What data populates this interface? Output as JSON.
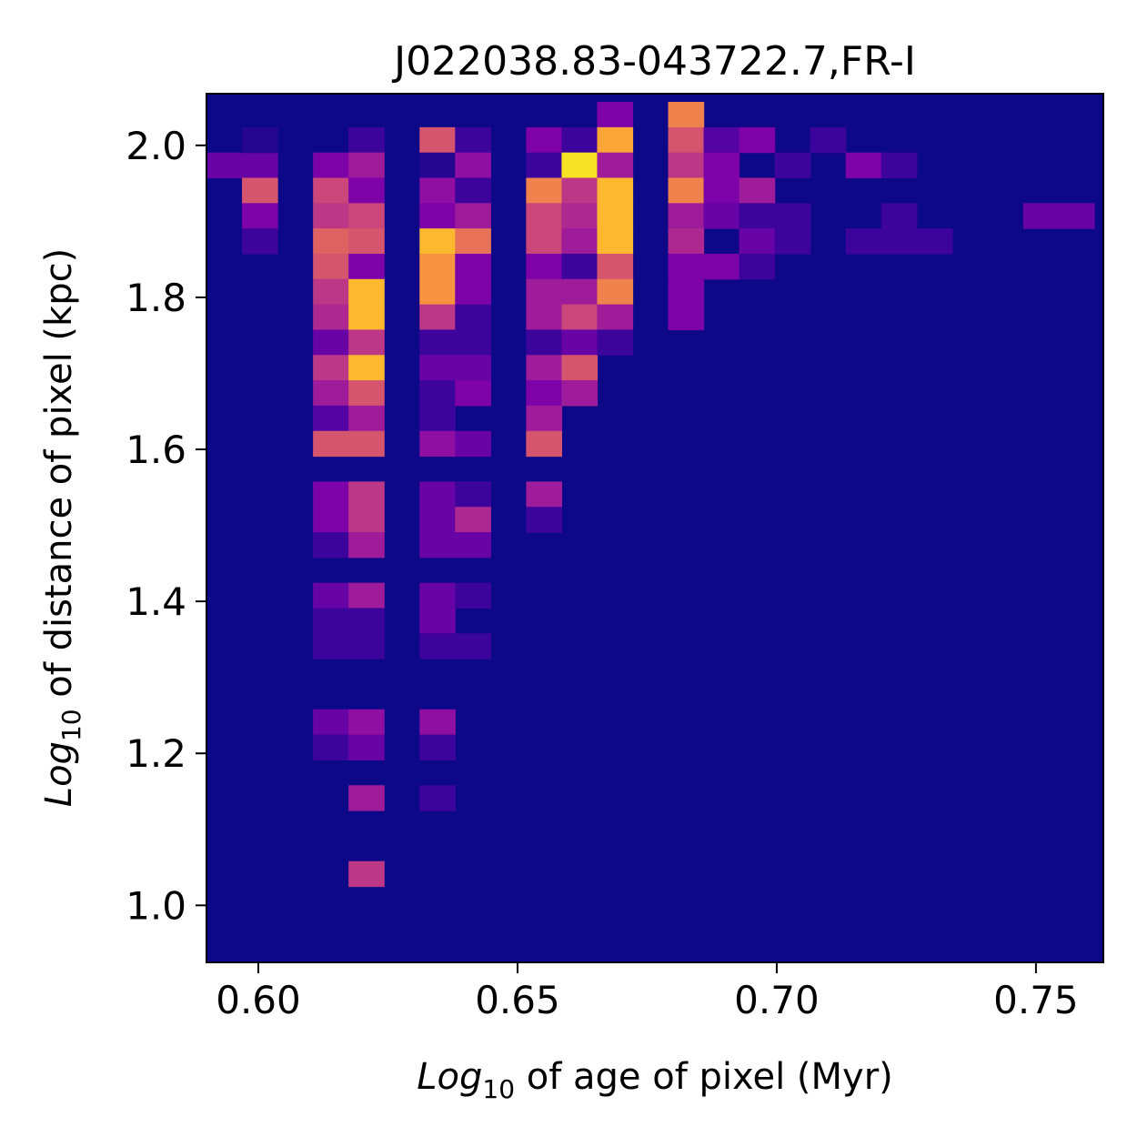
{
  "chart_data": {
    "type": "heatmap",
    "title": "J022038.83-043722.7,FR-I",
    "xlabel": {
      "log": "Log",
      "sub": "10",
      "rest": " of age of pixel (Myr)"
    },
    "ylabel": {
      "log": "Log",
      "sub": "10",
      "rest": " of distance of pixel (kpc)"
    },
    "xlim": [
      0.59,
      0.763
    ],
    "ylim": [
      0.925,
      2.068
    ],
    "xticks": [
      0.6,
      0.65,
      0.7,
      0.75
    ],
    "xtick_labels": [
      "0.60",
      "0.65",
      "0.70",
      "0.75"
    ],
    "yticks": [
      1.0,
      1.2,
      1.4,
      1.6,
      1.8,
      2.0
    ],
    "ytick_labels": [
      "1.0",
      "1.2",
      "1.4",
      "1.6",
      "1.8",
      "2.0"
    ],
    "colormap": "plasma",
    "background_color": "#0d0887",
    "bins": {
      "x0": 0.59,
      "dx": 0.00685,
      "nx": 25,
      "y0": 0.925,
      "dy": 0.0333,
      "ny": 34
    },
    "value_scale": "normalized 0-1 (count relative to maximum)",
    "cells": [
      [
        0,
        31,
        0.2
      ],
      [
        1,
        31,
        0.2
      ],
      [
        1,
        32,
        0.05
      ],
      [
        1,
        30,
        0.55
      ],
      [
        1,
        29,
        0.25
      ],
      [
        1,
        28,
        0.1
      ],
      [
        3,
        31,
        0.25
      ],
      [
        3,
        30,
        0.5
      ],
      [
        3,
        29,
        0.45
      ],
      [
        3,
        28,
        0.6
      ],
      [
        3,
        27,
        0.55
      ],
      [
        3,
        26,
        0.45
      ],
      [
        3,
        25,
        0.4
      ],
      [
        3,
        24,
        0.2
      ],
      [
        3,
        23,
        0.45
      ],
      [
        3,
        22,
        0.35
      ],
      [
        3,
        21,
        0.15
      ],
      [
        3,
        20,
        0.55
      ],
      [
        3,
        18,
        0.25
      ],
      [
        3,
        17,
        0.25
      ],
      [
        3,
        16,
        0.1
      ],
      [
        3,
        14,
        0.2
      ],
      [
        3,
        13,
        0.1
      ],
      [
        3,
        12,
        0.1
      ],
      [
        3,
        9,
        0.2
      ],
      [
        3,
        8,
        0.1
      ],
      [
        4,
        32,
        0.1
      ],
      [
        4,
        31,
        0.35
      ],
      [
        4,
        30,
        0.25
      ],
      [
        4,
        29,
        0.5
      ],
      [
        4,
        28,
        0.55
      ],
      [
        4,
        27,
        0.25
      ],
      [
        4,
        26,
        0.85
      ],
      [
        4,
        25,
        0.85
      ],
      [
        4,
        24,
        0.45
      ],
      [
        4,
        23,
        0.85
      ],
      [
        4,
        22,
        0.55
      ],
      [
        4,
        21,
        0.35
      ],
      [
        4,
        20,
        0.55
      ],
      [
        4,
        18,
        0.45
      ],
      [
        4,
        17,
        0.45
      ],
      [
        4,
        16,
        0.35
      ],
      [
        4,
        14,
        0.35
      ],
      [
        4,
        13,
        0.1
      ],
      [
        4,
        12,
        0.1
      ],
      [
        4,
        9,
        0.3
      ],
      [
        4,
        8,
        0.2
      ],
      [
        4,
        6,
        0.35
      ],
      [
        4,
        3,
        0.45
      ],
      [
        6,
        32,
        0.55
      ],
      [
        6,
        31,
        0.05
      ],
      [
        6,
        30,
        0.3
      ],
      [
        6,
        29,
        0.25
      ],
      [
        6,
        28,
        0.85
      ],
      [
        6,
        27,
        0.75
      ],
      [
        6,
        26,
        0.75
      ],
      [
        6,
        25,
        0.45
      ],
      [
        6,
        24,
        0.1
      ],
      [
        6,
        23,
        0.2
      ],
      [
        6,
        22,
        0.1
      ],
      [
        6,
        21,
        0.1
      ],
      [
        6,
        20,
        0.3
      ],
      [
        6,
        18,
        0.2
      ],
      [
        6,
        17,
        0.2
      ],
      [
        6,
        16,
        0.2
      ],
      [
        6,
        14,
        0.2
      ],
      [
        6,
        13,
        0.2
      ],
      [
        6,
        12,
        0.1
      ],
      [
        6,
        9,
        0.3
      ],
      [
        6,
        8,
        0.1
      ],
      [
        6,
        6,
        0.1
      ],
      [
        7,
        32,
        0.1
      ],
      [
        7,
        31,
        0.3
      ],
      [
        7,
        30,
        0.1
      ],
      [
        7,
        29,
        0.35
      ],
      [
        7,
        28,
        0.65
      ],
      [
        7,
        27,
        0.25
      ],
      [
        7,
        26,
        0.25
      ],
      [
        7,
        25,
        0.1
      ],
      [
        7,
        24,
        0.1
      ],
      [
        7,
        23,
        0.2
      ],
      [
        7,
        22,
        0.25
      ],
      [
        7,
        20,
        0.2
      ],
      [
        7,
        18,
        0.1
      ],
      [
        7,
        17,
        0.4
      ],
      [
        7,
        16,
        0.2
      ],
      [
        7,
        14,
        0.1
      ],
      [
        7,
        12,
        0.1
      ],
      [
        9,
        32,
        0.25
      ],
      [
        9,
        31,
        0.1
      ],
      [
        9,
        30,
        0.7
      ],
      [
        9,
        29,
        0.5
      ],
      [
        9,
        28,
        0.5
      ],
      [
        9,
        27,
        0.25
      ],
      [
        9,
        26,
        0.35
      ],
      [
        9,
        25,
        0.35
      ],
      [
        9,
        24,
        0.1
      ],
      [
        9,
        23,
        0.35
      ],
      [
        9,
        22,
        0.25
      ],
      [
        9,
        21,
        0.35
      ],
      [
        9,
        20,
        0.55
      ],
      [
        9,
        18,
        0.35
      ],
      [
        9,
        17,
        0.1
      ],
      [
        10,
        32,
        0.1
      ],
      [
        10,
        31,
        0.95
      ],
      [
        10,
        30,
        0.45
      ],
      [
        10,
        29,
        0.4
      ],
      [
        10,
        28,
        0.35
      ],
      [
        10,
        27,
        0.1
      ],
      [
        10,
        26,
        0.35
      ],
      [
        10,
        25,
        0.5
      ],
      [
        10,
        24,
        0.2
      ],
      [
        10,
        23,
        0.55
      ],
      [
        10,
        22,
        0.35
      ],
      [
        11,
        33,
        0.25
      ],
      [
        11,
        32,
        0.8
      ],
      [
        11,
        31,
        0.35
      ],
      [
        11,
        30,
        0.85
      ],
      [
        11,
        29,
        0.85
      ],
      [
        11,
        28,
        0.85
      ],
      [
        11,
        27,
        0.55
      ],
      [
        11,
        26,
        0.7
      ],
      [
        11,
        25,
        0.35
      ],
      [
        11,
        24,
        0.1
      ],
      [
        13,
        33,
        0.7
      ],
      [
        13,
        32,
        0.55
      ],
      [
        13,
        31,
        0.45
      ],
      [
        13,
        30,
        0.7
      ],
      [
        13,
        29,
        0.35
      ],
      [
        13,
        28,
        0.4
      ],
      [
        13,
        27,
        0.25
      ],
      [
        13,
        26,
        0.25
      ],
      [
        13,
        25,
        0.25
      ],
      [
        14,
        32,
        0.15
      ],
      [
        14,
        31,
        0.25
      ],
      [
        14,
        30,
        0.25
      ],
      [
        14,
        29,
        0.2
      ],
      [
        14,
        27,
        0.25
      ],
      [
        15,
        32,
        0.25
      ],
      [
        15,
        30,
        0.35
      ],
      [
        15,
        29,
        0.1
      ],
      [
        15,
        28,
        0.2
      ],
      [
        15,
        27,
        0.1
      ],
      [
        16,
        31,
        0.1
      ],
      [
        16,
        29,
        0.1
      ],
      [
        16,
        28,
        0.1
      ],
      [
        17,
        32,
        0.1
      ],
      [
        18,
        31,
        0.25
      ],
      [
        18,
        28,
        0.1
      ],
      [
        19,
        31,
        0.1
      ],
      [
        19,
        29,
        0.1
      ],
      [
        19,
        28,
        0.1
      ],
      [
        20,
        28,
        0.1
      ],
      [
        23,
        29,
        0.2
      ],
      [
        24,
        29,
        0.2
      ]
    ]
  }
}
